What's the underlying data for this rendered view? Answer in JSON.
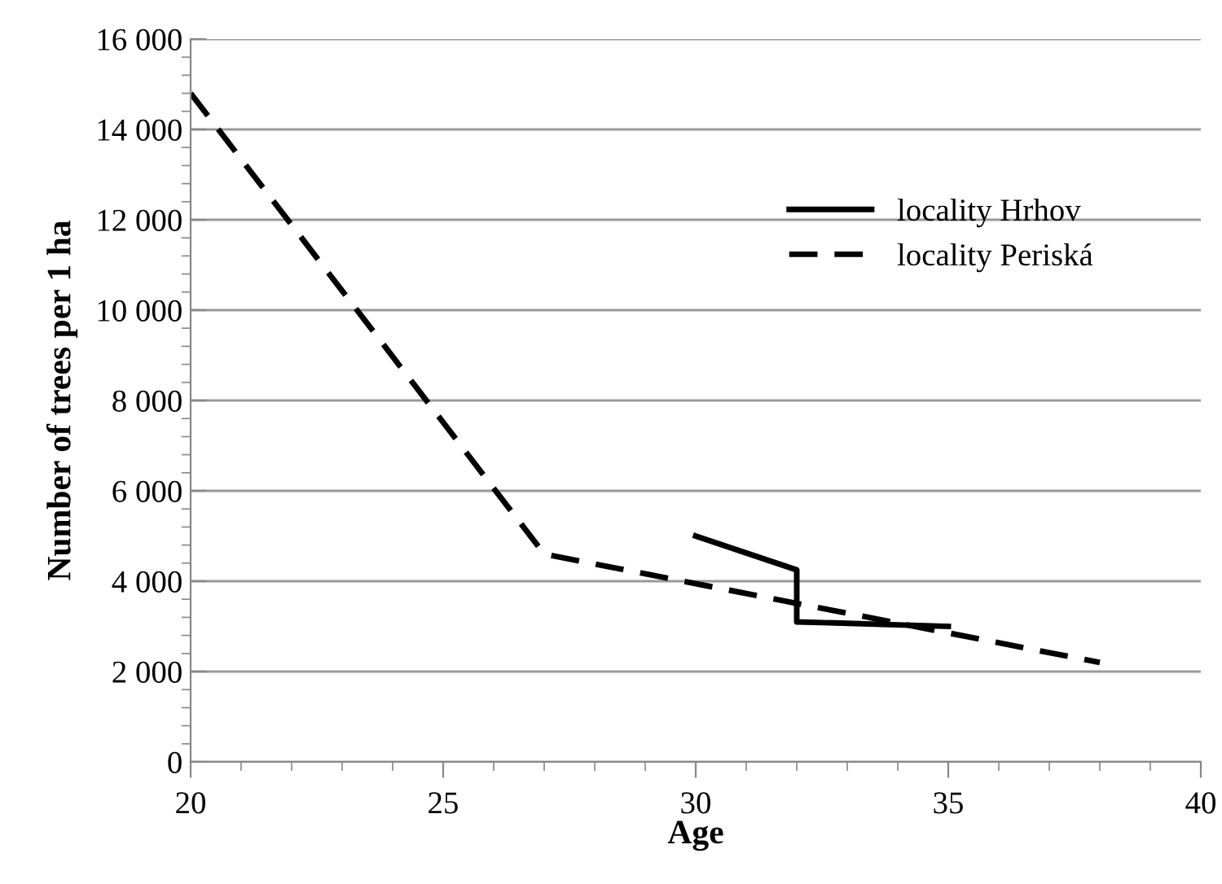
{
  "chart_data": {
    "type": "line",
    "xlabel": "Age",
    "ylabel": "Number of trees per 1 ha",
    "xlim": [
      20,
      40
    ],
    "xticks": [
      20,
      25,
      30,
      35,
      40
    ],
    "ylim": [
      0,
      16000
    ],
    "yticks": [
      {
        "value": 0,
        "label": "0"
      },
      {
        "value": 2000,
        "label": "2 000"
      },
      {
        "value": 4000,
        "label": "4 000"
      },
      {
        "value": 6000,
        "label": "6 000"
      },
      {
        "value": 8000,
        "label": "8 000"
      },
      {
        "value": 10000,
        "label": "10 000"
      },
      {
        "value": 12000,
        "label": "12 000"
      },
      {
        "value": 14000,
        "label": "14 000"
      },
      {
        "value": 16000,
        "label": "16 000"
      }
    ],
    "grid": "y",
    "legend": "top right",
    "marker": "none",
    "series": [
      {
        "name": "locality Hrhov",
        "color": "#000000",
        "line_style": "solid",
        "x": [
          30,
          32,
          32,
          35
        ],
        "values": [
          5000,
          4250,
          3100,
          3000
        ]
      },
      {
        "name": "locality Periská",
        "color": "#000000",
        "line_style": "dashed",
        "x": [
          20,
          27,
          38
        ],
        "values": [
          14800,
          4600,
          2200
        ]
      }
    ]
  }
}
